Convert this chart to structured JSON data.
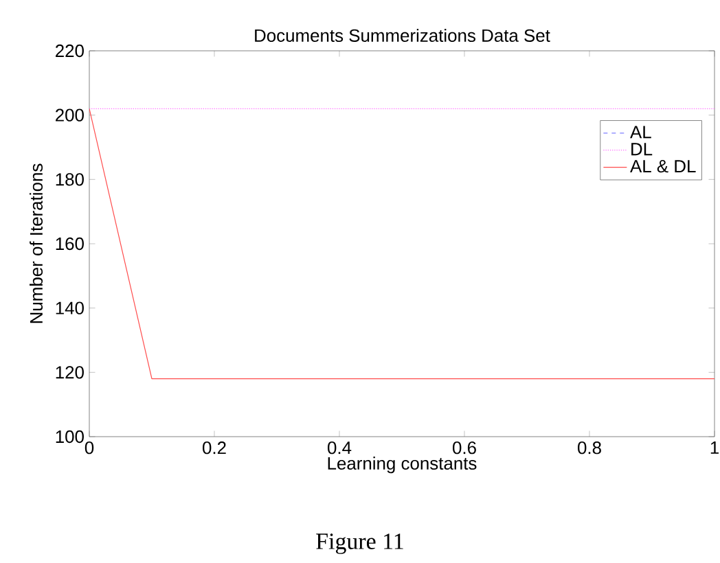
{
  "chart_data": {
    "type": "line",
    "title": "Documents Summerizations  Data Set",
    "xlabel": "Learning constants",
    "ylabel": "Number of  Iterations",
    "xlim": [
      0,
      1
    ],
    "ylim": [
      100,
      220
    ],
    "xticks": [
      0,
      0.2,
      0.4,
      0.6,
      0.8,
      1
    ],
    "yticks": [
      100,
      120,
      140,
      160,
      180,
      200,
      220
    ],
    "marker": "none",
    "legend": "top right",
    "annotations": [
      "Figure 11"
    ],
    "series": [
      {
        "name": "AL",
        "color": "#7f7fff",
        "line_style": "dashed"
      },
      {
        "name": "DL",
        "color": "#ff66ff",
        "line_style": "dotted",
        "x": [
          0,
          1
        ],
        "values": [
          202,
          202
        ]
      },
      {
        "name": "AL & DL",
        "color": "#ff4d4d",
        "line_style": "solid",
        "x": [
          0,
          0.1,
          1
        ],
        "values": [
          202,
          118,
          118
        ]
      }
    ]
  }
}
